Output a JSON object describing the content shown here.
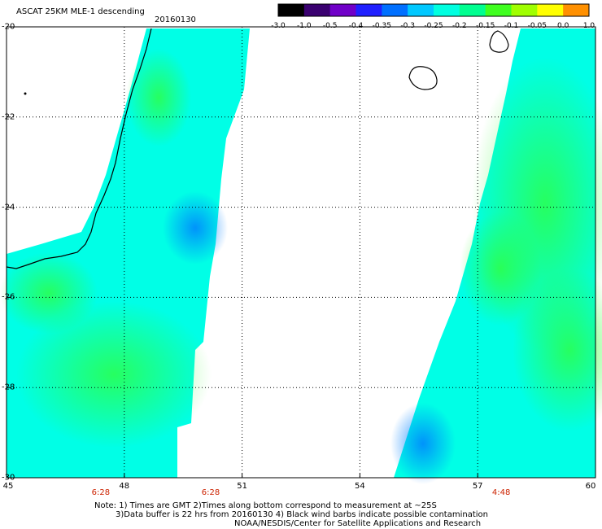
{
  "header": {
    "title": "ASCAT 25KM MLE-1 descending",
    "date": "20160130"
  },
  "colorbar": {
    "labels": [
      "-3.0",
      "-1.0",
      "-0.5",
      "-0.4",
      "-0.35",
      "-0.3",
      "-0.25",
      "-0.2",
      "-0.15",
      "-0.1",
      "-0.05",
      "0.0",
      "1.0"
    ],
    "colors": [
      "#000000",
      "#3a0070",
      "#7000c8",
      "#2020ff",
      "#0070ff",
      "#00c8ff",
      "#00ffe0",
      "#00ff90",
      "#40ff20",
      "#a0ff00",
      "#ffff00",
      "#ff9000",
      "#ff2000"
    ]
  },
  "axes": {
    "x_ticks": [
      "45",
      "48",
      "51",
      "54",
      "57",
      "60"
    ],
    "y_ticks": [
      "-20",
      "-22",
      "-24",
      "-26",
      "-28",
      "-30"
    ],
    "xlim": [
      45,
      60
    ],
    "ylim": [
      -30,
      -20
    ]
  },
  "pass_times": [
    {
      "label": "6:28",
      "lon": 47.4
    },
    {
      "label": "6:28",
      "lon": 50.2
    },
    {
      "label": "4:48",
      "lon": 57.6
    }
  ],
  "footer": {
    "note1": "Note: 1) Times are GMT 2)Times along bottom correspond to measurement at ~25S",
    "note2": "3)Data buffer is 22 hrs from 20160130 4) Black wind barbs indicate possible contamination",
    "credit": "NOAA/NESDIS/Center for Satellite Applications and Research"
  }
}
